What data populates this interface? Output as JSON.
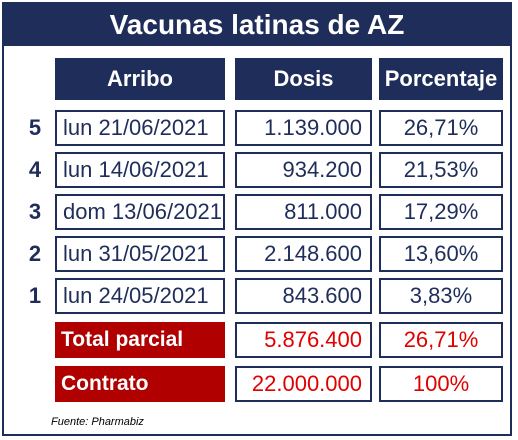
{
  "title": "Vacunas latinas de AZ",
  "headers": {
    "arribo": "Arribo",
    "dosis": "Dosis",
    "porcentaje": "Porcentaje"
  },
  "rows": [
    {
      "rank": "5",
      "arribo": "lun 21/06/2021",
      "dosis": "1.139.000",
      "porcentaje": "26,71%"
    },
    {
      "rank": "4",
      "arribo": "lun 14/06/2021",
      "dosis": "934.200",
      "porcentaje": "21,53%"
    },
    {
      "rank": "3",
      "arribo": "dom 13/06/2021",
      "dosis": "811.000",
      "porcentaje": "17,29%"
    },
    {
      "rank": "2",
      "arribo": "lun 31/05/2021",
      "dosis": "2.148.600",
      "porcentaje": "13,60%"
    },
    {
      "rank": "1",
      "arribo": "lun 24/05/2021",
      "dosis": "843.600",
      "porcentaje": "3,83%"
    }
  ],
  "total_parcial": {
    "label": "Total parcial",
    "dosis": "5.876.400",
    "porcentaje": "26,71%"
  },
  "contrato": {
    "label": "Contrato",
    "dosis": "22.000.000",
    "porcentaje": "100%"
  },
  "source": "Fuente: Pharmabiz",
  "colors": {
    "navy": "#1f2d5a",
    "accent_red": "#b00000",
    "text_red": "#e00000"
  }
}
